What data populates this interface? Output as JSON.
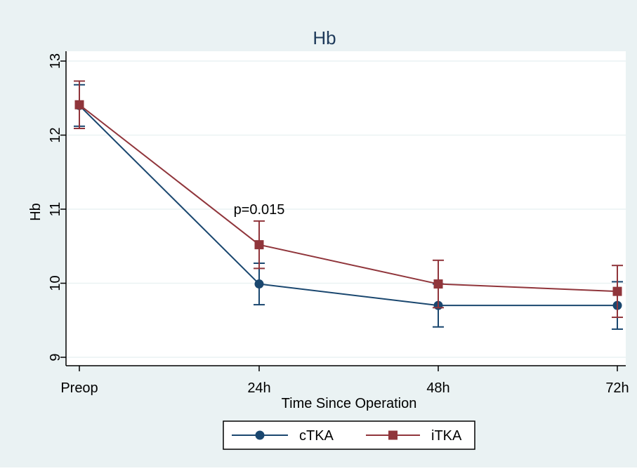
{
  "chart_data": {
    "type": "line",
    "title": "Hb",
    "xlabel": "Time Since Operation",
    "ylabel": "Hb",
    "categories": [
      "Preop",
      "24h",
      "48h",
      "72h"
    ],
    "ylim": [
      8.9,
      13.2
    ],
    "yticks": [
      9,
      10,
      11,
      12,
      13
    ],
    "grid": true,
    "legend_position": "bottom",
    "annotation": {
      "text": "p=0.015",
      "category": "24h"
    },
    "series": [
      {
        "name": "cTKA",
        "color": "#1a476f",
        "marker": "circle",
        "values": [
          12.4,
          9.99,
          9.7,
          9.7
        ],
        "lower": [
          12.12,
          9.71,
          9.41,
          9.38
        ],
        "upper": [
          12.68,
          10.27,
          9.99,
          10.02
        ]
      },
      {
        "name": "iTKA",
        "color": "#90353b",
        "marker": "square",
        "values": [
          12.41,
          10.52,
          9.99,
          9.89
        ],
        "lower": [
          12.09,
          10.2,
          9.67,
          9.54
        ],
        "upper": [
          12.73,
          10.84,
          10.31,
          10.24
        ]
      }
    ]
  }
}
